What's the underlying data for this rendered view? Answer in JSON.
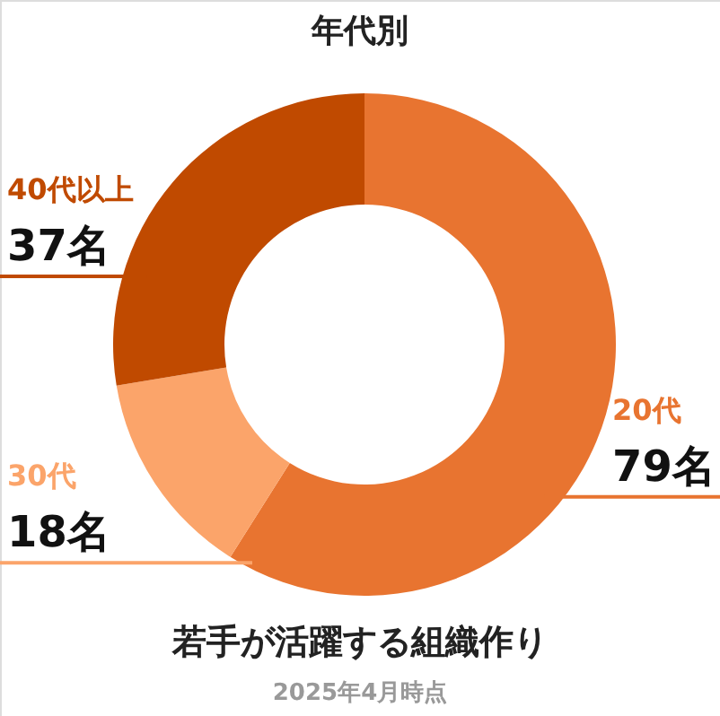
{
  "chart_data": {
    "type": "donut",
    "title": "年代別",
    "categories": [
      "20代",
      "30代",
      "40代以上"
    ],
    "values": [
      79,
      18,
      37
    ],
    "colors": [
      "#e87430",
      "#fba46a",
      "#c04a00"
    ],
    "value_labels": [
      "79名",
      "18名",
      "37名"
    ],
    "annotations": [
      "若手が活躍する組織作り",
      "2025年4月時点"
    ]
  }
}
